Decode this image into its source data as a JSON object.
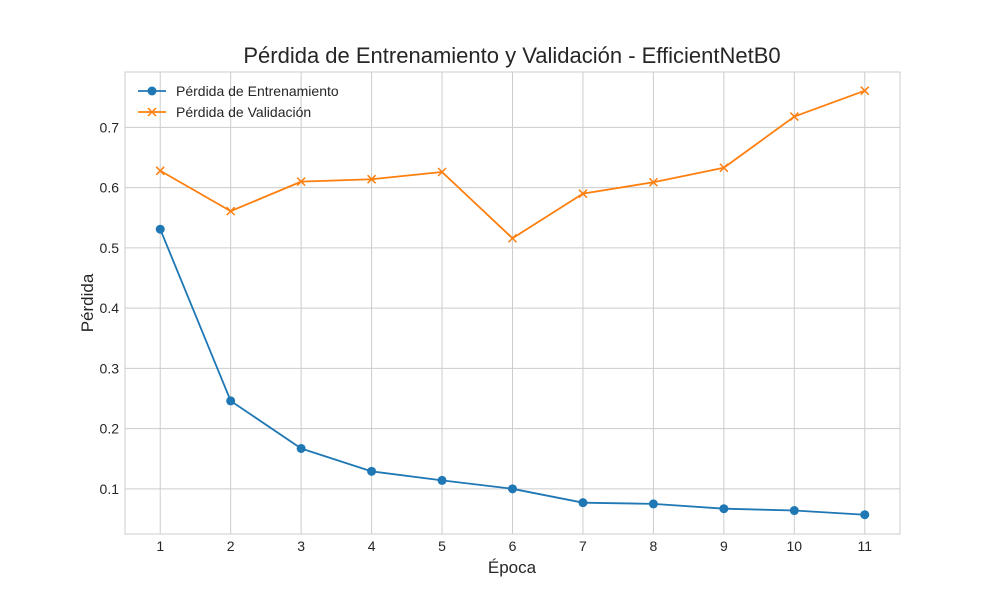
{
  "chart_data": {
    "type": "line",
    "title": "Pérdida de Entrenamiento y Validación - EfficientNetB0",
    "xlabel": "Época",
    "ylabel": "Pérdida",
    "x": [
      1,
      2,
      3,
      4,
      5,
      6,
      7,
      8,
      9,
      10,
      11
    ],
    "xlim": [
      0.5,
      11.5
    ],
    "ylim": [
      0.025,
      0.792
    ],
    "yticks": [
      0.1,
      0.2,
      0.3,
      0.4,
      0.5,
      0.6,
      0.7
    ],
    "grid": true,
    "legend_position": "top-left",
    "series": [
      {
        "name": "Pérdida de Entrenamiento",
        "color": "#1f77b4",
        "marker": "circle",
        "values": [
          0.531,
          0.246,
          0.167,
          0.129,
          0.114,
          0.1,
          0.077,
          0.075,
          0.067,
          0.064,
          0.057
        ]
      },
      {
        "name": "Pérdida de Validación",
        "color": "#ff7f0e",
        "marker": "x",
        "values": [
          0.628,
          0.561,
          0.61,
          0.614,
          0.626,
          0.516,
          0.59,
          0.609,
          0.633,
          0.718,
          0.761
        ]
      }
    ]
  }
}
